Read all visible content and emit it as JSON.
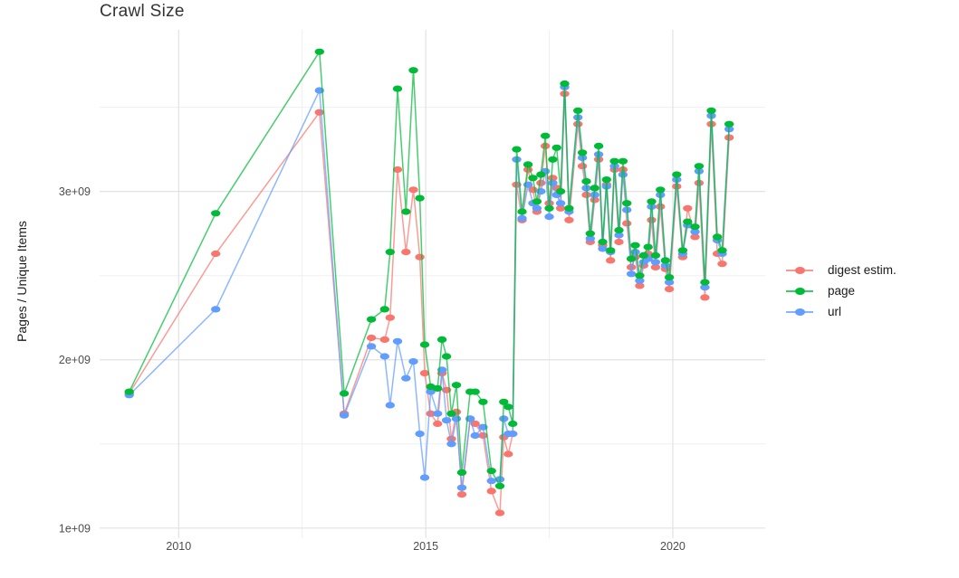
{
  "title": "Crawl Size",
  "legend": {
    "position": "right",
    "items": [
      {
        "label": "digest estim.",
        "color": "#F8766D"
      },
      {
        "label": "page",
        "color": "#00BA38"
      },
      {
        "label": "url",
        "color": "#619CFF"
      }
    ]
  },
  "chart_data": {
    "type": "line",
    "title": "Crawl Size",
    "xlabel": "",
    "ylabel": "Pages / Unique Items",
    "unit": "pages (value 1.0 = 1e+09)",
    "grid": true,
    "legend_position": "right",
    "xlim": [
      2008.4,
      2021.87
    ],
    "ylim": [
      0.94,
      3.96
    ],
    "x_ticks": [
      {
        "label": "2010",
        "value": 2010
      },
      {
        "label": "2015",
        "value": 2015
      },
      {
        "label": "2020",
        "value": 2020
      }
    ],
    "y_ticks": [
      {
        "label": "1e+09",
        "value": 1
      },
      {
        "label": "2e+09",
        "value": 2
      },
      {
        "label": "3e+09",
        "value": 3
      }
    ],
    "x_minor": [
      2012.5,
      2017.5
    ],
    "y_minor": [
      1.5,
      2.5,
      3.5
    ],
    "x": [
      2009.0,
      2010.75,
      2012.85,
      2013.35,
      2013.9,
      2014.17,
      2014.28,
      2014.43,
      2014.6,
      2014.75,
      2014.88,
      2014.98,
      2015.1,
      2015.24,
      2015.33,
      2015.42,
      2015.52,
      2015.62,
      2015.73,
      2015.9,
      2016.0,
      2016.16,
      2016.33,
      2016.5,
      2016.58,
      2016.67,
      2016.76,
      2016.84,
      2016.95,
      2017.07,
      2017.17,
      2017.25,
      2017.33,
      2017.42,
      2017.5,
      2017.57,
      2017.65,
      2017.73,
      2017.81,
      2017.9,
      2018.08,
      2018.17,
      2018.25,
      2018.33,
      2018.42,
      2018.5,
      2018.58,
      2018.66,
      2018.74,
      2018.82,
      2018.91,
      2018.99,
      2019.07,
      2019.16,
      2019.24,
      2019.33,
      2019.41,
      2019.5,
      2019.57,
      2019.65,
      2019.75,
      2019.85,
      2019.93,
      2020.08,
      2020.2,
      2020.3,
      2020.45,
      2020.53,
      2020.65,
      2020.78,
      2020.9,
      2021.0,
      2021.14
    ],
    "series": [
      {
        "name": "digest estim.",
        "color": "#F8766D",
        "values": [
          1.8,
          2.63,
          3.47,
          1.68,
          2.13,
          2.12,
          2.25,
          3.13,
          2.64,
          3.01,
          2.61,
          1.92,
          1.68,
          1.62,
          1.92,
          1.82,
          1.53,
          1.69,
          1.2,
          1.65,
          1.62,
          1.55,
          1.22,
          1.09,
          1.54,
          1.44,
          1.56,
          3.04,
          2.83,
          3.13,
          3.01,
          2.88,
          3.05,
          3.27,
          2.93,
          3.08,
          3.02,
          2.9,
          3.58,
          2.83,
          3.4,
          3.15,
          2.98,
          2.7,
          2.95,
          3.19,
          2.68,
          3.04,
          2.59,
          3.13,
          2.7,
          3.13,
          2.81,
          2.55,
          2.61,
          2.44,
          2.56,
          2.63,
          2.83,
          2.55,
          2.91,
          2.54,
          2.42,
          3.03,
          2.61,
          2.9,
          2.73,
          3.05,
          2.37,
          3.4,
          2.63,
          2.57,
          3.32
        ]
      },
      {
        "name": "page",
        "color": "#00BA38",
        "values": [
          1.81,
          2.87,
          3.83,
          1.8,
          2.24,
          2.3,
          2.64,
          3.61,
          2.88,
          3.72,
          2.96,
          2.09,
          1.84,
          1.83,
          2.12,
          2.02,
          1.68,
          1.85,
          1.33,
          1.81,
          1.81,
          1.75,
          1.34,
          1.25,
          1.75,
          1.72,
          1.62,
          3.25,
          2.88,
          3.16,
          3.08,
          2.94,
          3.1,
          3.33,
          2.9,
          3.19,
          3.26,
          3.0,
          3.64,
          2.9,
          3.48,
          3.23,
          3.06,
          2.75,
          3.02,
          3.27,
          2.7,
          3.07,
          2.65,
          3.18,
          2.77,
          3.18,
          2.93,
          2.6,
          2.68,
          2.5,
          2.62,
          2.67,
          2.94,
          2.62,
          3.01,
          2.59,
          2.49,
          3.1,
          2.65,
          2.82,
          2.79,
          3.15,
          2.46,
          3.48,
          2.73,
          2.65,
          3.4
        ]
      },
      {
        "name": "url",
        "color": "#619CFF",
        "values": [
          1.79,
          2.3,
          3.6,
          1.67,
          2.08,
          2.02,
          1.73,
          2.11,
          1.89,
          1.99,
          1.56,
          1.3,
          1.81,
          1.68,
          1.94,
          1.64,
          1.5,
          1.65,
          1.24,
          1.65,
          1.55,
          1.6,
          1.28,
          1.29,
          1.65,
          1.56,
          1.56,
          3.19,
          2.84,
          3.04,
          2.93,
          2.9,
          3.0,
          3.12,
          2.85,
          3.05,
          2.98,
          2.93,
          3.62,
          2.88,
          3.44,
          3.2,
          3.02,
          2.72,
          2.98,
          3.22,
          2.66,
          3.03,
          2.64,
          3.15,
          2.74,
          3.1,
          2.89,
          2.51,
          2.64,
          2.47,
          2.58,
          2.6,
          2.91,
          2.58,
          2.98,
          2.56,
          2.46,
          3.07,
          2.63,
          2.8,
          2.76,
          3.12,
          2.43,
          3.45,
          2.71,
          2.63,
          3.37
        ]
      }
    ]
  }
}
